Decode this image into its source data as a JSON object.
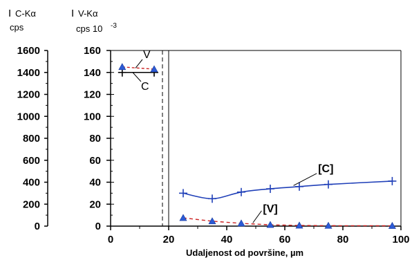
{
  "chart_data": {
    "type": "line",
    "xlabel": "Udaljenost od površine, µm",
    "x_ticks": [
      "0",
      "20",
      "40",
      "60",
      "80",
      "100"
    ],
    "xlim": [
      0,
      100
    ],
    "left_axis": {
      "title": "I",
      "title_sub": "C-Kα",
      "unit": "cps",
      "ticks": [
        "0",
        "200",
        "400",
        "600",
        "800",
        "1000",
        "1200",
        "1400",
        "1600"
      ],
      "ylim": [
        0,
        1600
      ]
    },
    "right_axis": {
      "title": "I",
      "title_sub": "V-Kα",
      "unit": "cps 10",
      "unit_exp": "-3",
      "ticks": [
        "0",
        "20",
        "40",
        "60",
        "80",
        "100",
        "120",
        "140",
        "160"
      ],
      "ylim": [
        0,
        160
      ]
    },
    "surface_region": {
      "x_from": 0,
      "x_to": 18
    },
    "series": [
      {
        "name": "[C]",
        "marker": "plus",
        "color": "#1f3fb8",
        "x": [
          25,
          35,
          45,
          55,
          65,
          75,
          97
        ],
        "y": [
          30,
          25,
          31,
          34,
          36,
          38,
          41
        ]
      },
      {
        "name": "[V]",
        "marker": "triangle",
        "color": "#cc2222",
        "x": [
          25,
          35,
          45,
          55,
          65,
          75,
          97
        ],
        "y": [
          7.5,
          4.5,
          2.5,
          1.2,
          0.6,
          0.4,
          0.3
        ]
      }
    ],
    "surface_series": [
      {
        "name": "C",
        "marker": "plus",
        "color": "#000000",
        "x": [
          4,
          15
        ],
        "y": [
          140,
          140
        ]
      },
      {
        "name": "V",
        "marker": "triangle",
        "color": "#cc2222",
        "x": [
          4,
          15
        ],
        "y": [
          145,
          143
        ]
      }
    ]
  },
  "colors": {
    "c_marker": "#1f3fb8",
    "v_marker": "#2c5bd6",
    "v_line": "#cc2222"
  }
}
